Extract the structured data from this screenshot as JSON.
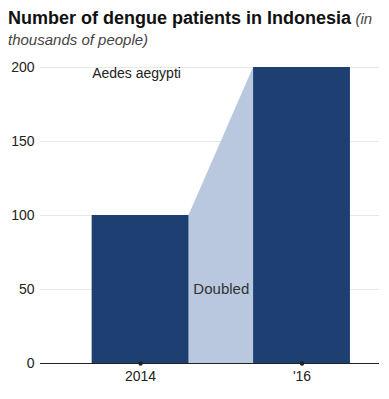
{
  "chart_data": {
    "type": "bar",
    "title": "Number of dengue patients in Indonesia",
    "subtitle": "(in thousands of people)",
    "categories": [
      "2014",
      "'16"
    ],
    "values": [
      100,
      200
    ],
    "color": "#1d3f72",
    "ylim": [
      0,
      200
    ],
    "yticks": [
      0,
      50,
      100,
      150,
      200
    ],
    "grid": true,
    "annotations": [
      {
        "text": "Aedes aegypti"
      },
      {
        "text": "Doubled"
      }
    ]
  }
}
